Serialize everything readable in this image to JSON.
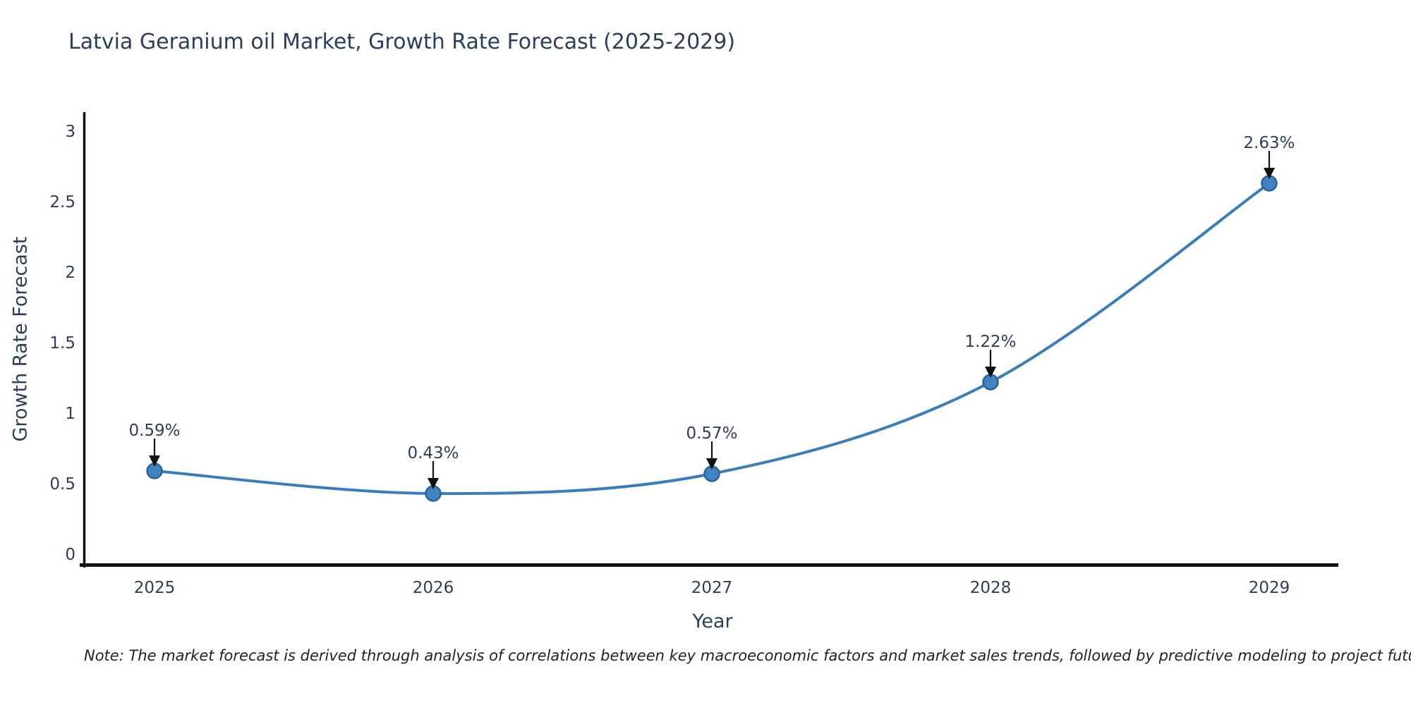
{
  "title": "Latvia Geranium oil Market, Growth Rate Forecast (2025-2029)",
  "note": "Note: The market forecast is derived through analysis of correlations between key macroeconomic factors and market sales trends, followed by predictive modeling to project future sales",
  "chart_data": {
    "type": "line",
    "title": "Latvia Geranium oil Market, Growth Rate Forecast (2025-2029)",
    "xlabel": "Year",
    "ylabel": "Growth Rate Forecast",
    "categories": [
      "2025",
      "2026",
      "2027",
      "2028",
      "2029"
    ],
    "values": [
      0.59,
      0.43,
      0.57,
      1.22,
      2.63
    ],
    "point_labels": [
      "0.59%",
      "0.43%",
      "0.57%",
      "1.22%",
      "2.63%"
    ],
    "yticks": [
      "0",
      "0.5",
      "1",
      "1.5",
      "2",
      "2.5",
      "3"
    ],
    "ytick_values": [
      0,
      0.5,
      1,
      1.5,
      2,
      2.5,
      3
    ],
    "ylim": [
      -0.09,
      3.14
    ],
    "grid": false,
    "legend_position": "none",
    "line_shape": "spline",
    "annotations_have_arrows": true,
    "colors": {
      "line": "#3a7db8",
      "marker_fill": "#4183c0",
      "marker_edge": "#2b649b",
      "axis": "#111111",
      "text": "#2a3f5f",
      "arrow": "#111111",
      "note_text": "#222222",
      "background": "#ffffff"
    }
  }
}
